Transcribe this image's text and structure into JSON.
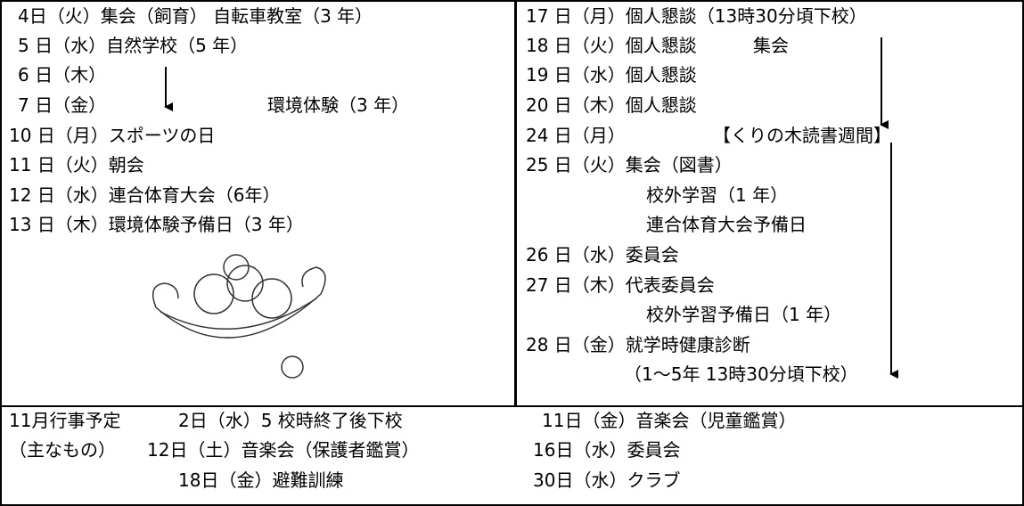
{
  "left": {
    "items": [
      "4日（火）集会（飼育） 自転車教室（3 年）",
      "5 日（水）自然学校（5 年）",
      "6 日（木）",
      "7 日（金）",
      "環境体験（3 年）",
      "10 日（月）スポーツの日",
      "11 日（火）朝会",
      "12 日（水）連合体育大会（6年）",
      "13 日（木）環境体験予備日（3 年）"
    ]
  },
  "right": {
    "items": [
      "17 日（月）個人懇談（13時30分頃下校）",
      "18 日（火）個人懇談",
      "集会",
      "19 日（水）個人懇談",
      "20 日（木）個人懇談",
      "24 日（月）",
      "【くりの木読書週間】",
      "25 日（火）集会（図書）",
      "校外学習（1 年）",
      "連合体育大会予備日",
      "26 日（水）委員会",
      "27 日（木）代表委員会",
      "校外学習予備日（1 年）",
      "28 日（金）就学時健康診断",
      "（1～5年 13時30分頃下校）"
    ]
  },
  "bottom": {
    "heading": "11月行事予定",
    "subheading": "（主なもの）",
    "events": [
      "2日（水）5 校時終了後下校",
      "11日（金）音楽会（児童鑑賞）",
      "12日（土）音楽会（保護者鑑賞）",
      "16日（水）委員会",
      "18日（金）避難訓練",
      "30日（水）クラブ"
    ]
  }
}
